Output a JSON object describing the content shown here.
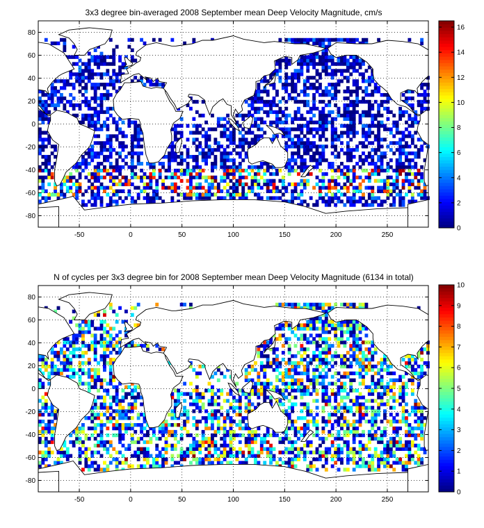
{
  "chart_data": [
    {
      "type": "heatmap",
      "title": "3x3 degree bin-averaged 2008 September mean Deep Velocity Magnitude, cm/s",
      "xlim": [
        -90,
        290
      ],
      "ylim": [
        -90,
        90
      ],
      "xticks": [
        "-50",
        "0",
        "50",
        "100",
        "150",
        "200",
        "250"
      ],
      "yticks": [
        "80",
        "60",
        "40",
        "20",
        "0",
        "-20",
        "-40",
        "-60",
        "-80"
      ],
      "grid": true,
      "bin_size_deg": 3,
      "colorbar": {
        "min": 0,
        "max": 16.5,
        "ticks": [
          "0",
          "2",
          "4",
          "6",
          "8",
          "10",
          "12",
          "14",
          "16"
        ],
        "colormap": "jet"
      },
      "data_description_values": {
        "typical_range": [
          0,
          6
        ],
        "high_values_region": "Southern Ocean (-60 to -40 lat)"
      }
    },
    {
      "type": "heatmap",
      "title": "N of cycles per 3x3 degree bin for 2008 September mean Deep Velocity Magnitude (6134 in total)",
      "xlim": [
        -90,
        290
      ],
      "ylim": [
        -90,
        90
      ],
      "xticks": [
        "-50",
        "0",
        "50",
        "100",
        "150",
        "200",
        "250"
      ],
      "yticks": [
        "80",
        "60",
        "40",
        "20",
        "0",
        "-20",
        "-40",
        "-60",
        "-80"
      ],
      "grid": true,
      "bin_size_deg": 3,
      "total_cycles": 6134,
      "colorbar": {
        "min": 0,
        "max": 10,
        "ticks": [
          "0",
          "1",
          "2",
          "3",
          "4",
          "5",
          "6",
          "7",
          "8",
          "9",
          "10"
        ],
        "colormap": "jet"
      }
    }
  ]
}
